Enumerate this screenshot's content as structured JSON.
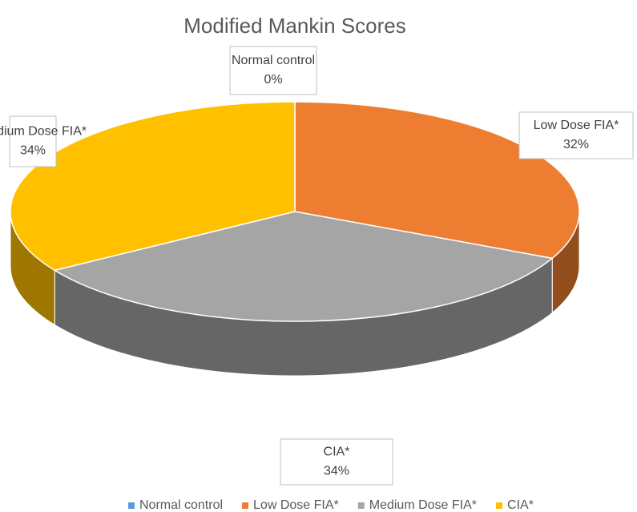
{
  "chart_data": {
    "type": "pie",
    "title": "Modified Mankin Scores",
    "categories": [
      "Normal control",
      "Low Dose FIA*",
      "Medium Dose FIA*",
      "CIA*"
    ],
    "values": [
      0,
      32,
      34,
      34
    ],
    "value_labels": [
      "0%",
      "32%",
      "34%",
      "34%"
    ],
    "colors": [
      "#5b9bd5",
      "#ed7d31",
      "#a5a5a5",
      "#ffc000"
    ],
    "legend": "bottom"
  }
}
